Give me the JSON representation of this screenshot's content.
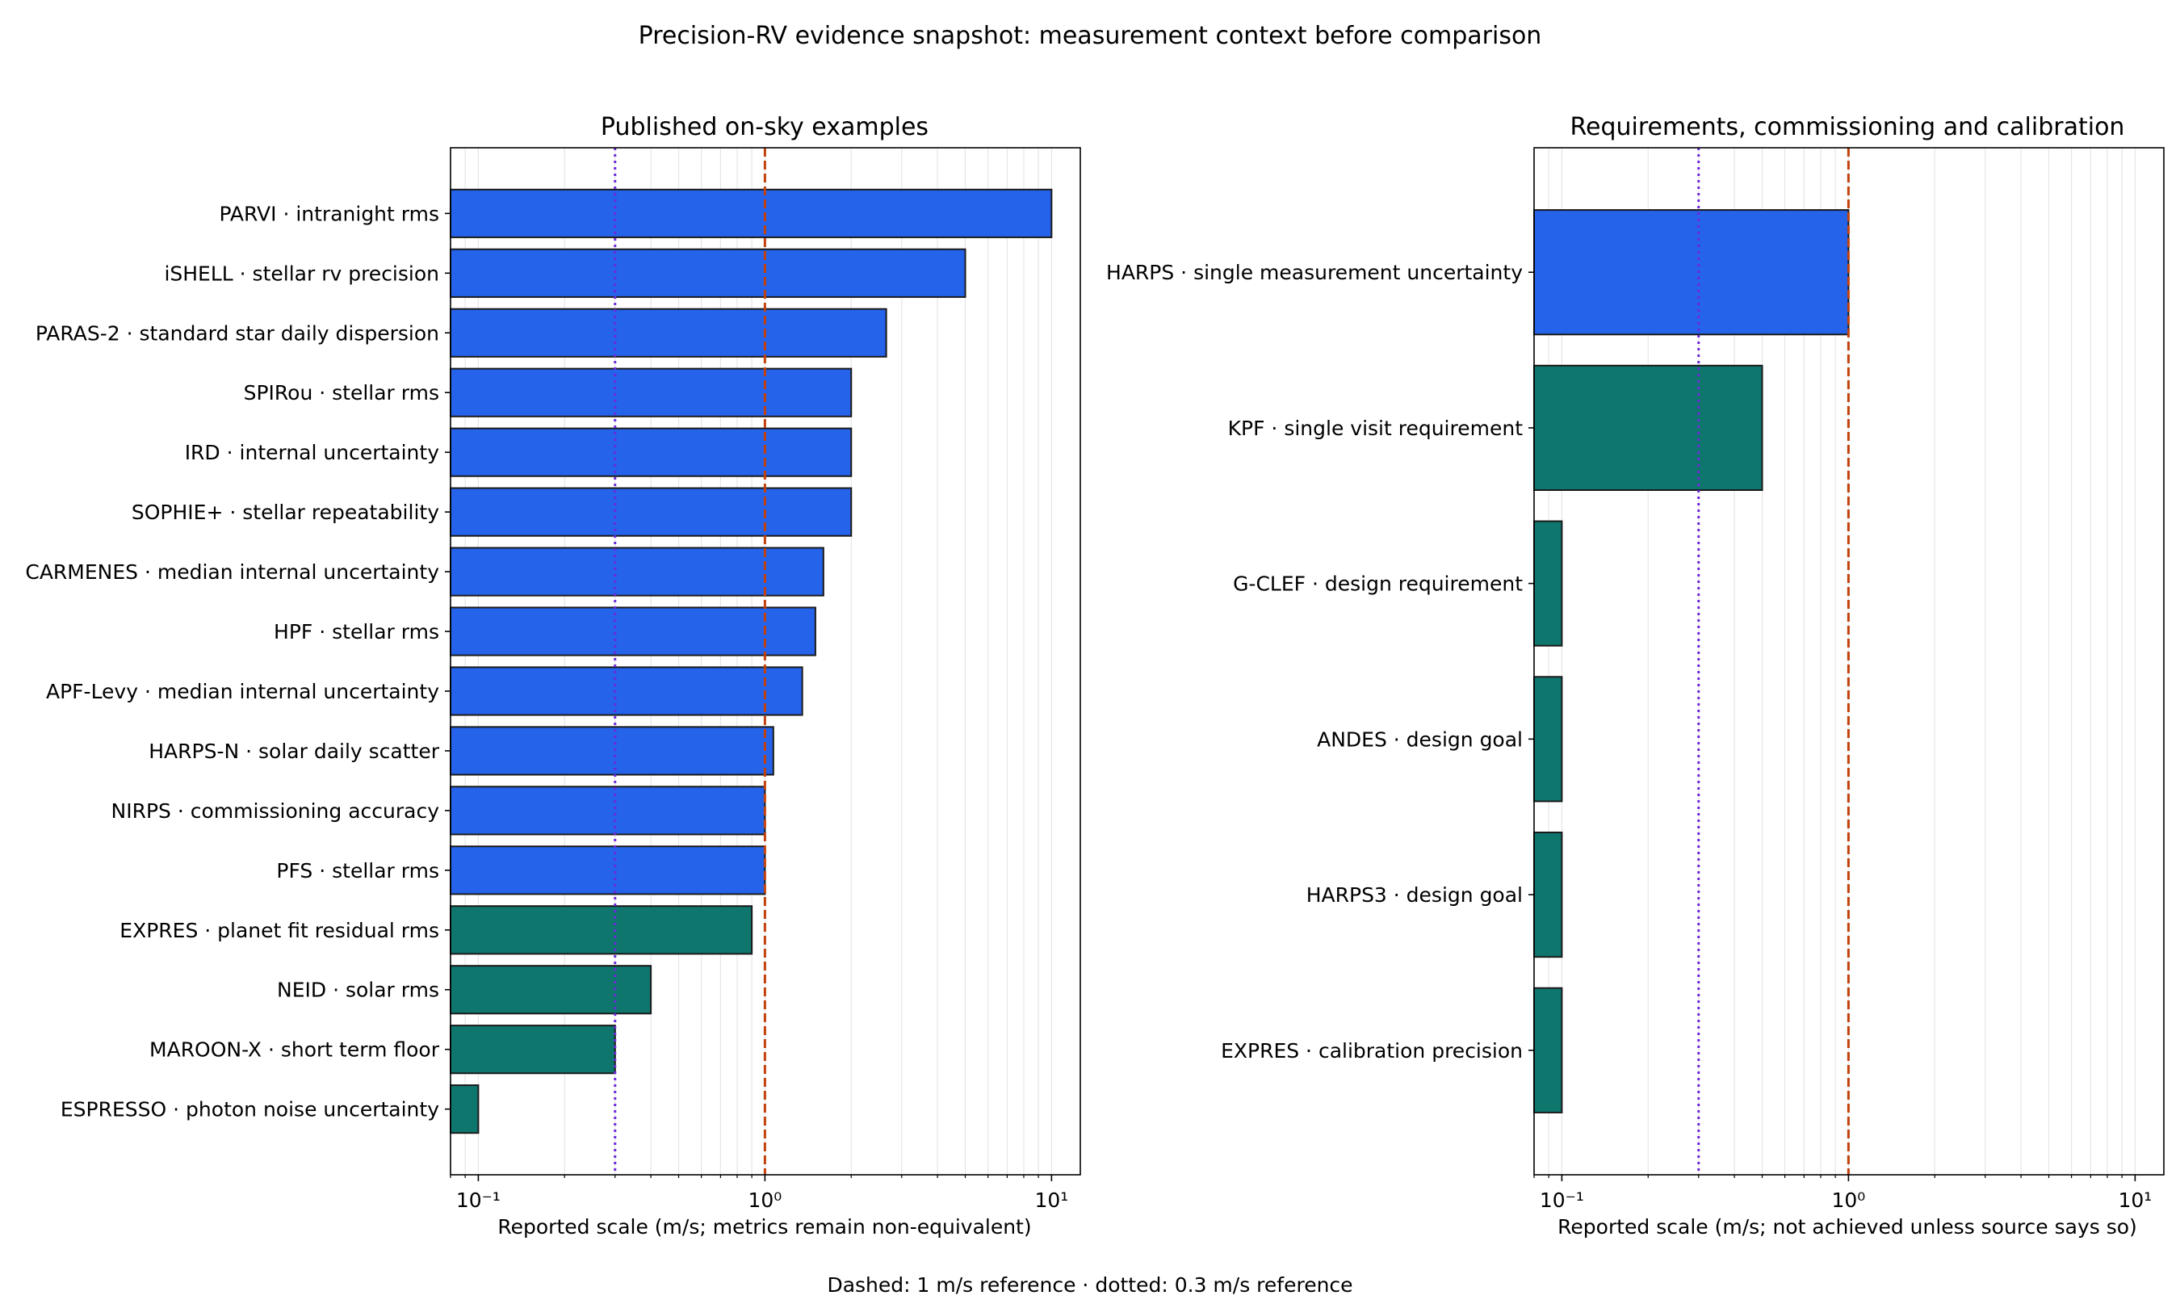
{
  "figure": {
    "title": "Precision-RV evidence snapshot: measurement context before comparison",
    "footer": "Dashed: 1 m/s reference · dotted: 0.3 m/s reference"
  },
  "colors": {
    "blue": "#2563eb",
    "teal": "#0f766e",
    "dashed_ref": "#c2410c",
    "dotted_ref": "#6d28d9"
  },
  "chart_data": [
    {
      "type": "bar",
      "orientation": "horizontal",
      "title": "Published on-sky examples",
      "xlabel": "Reported scale (m/s; metrics remain non-equivalent)",
      "xscale": "log",
      "xlim": [
        0.08,
        12.6
      ],
      "xticks": [
        0.1,
        1,
        10
      ],
      "xtick_labels": [
        "10⁻¹",
        "10⁰",
        "10¹"
      ],
      "grid": "x-minor",
      "reference_lines": [
        {
          "value": 1,
          "style": "dashed"
        },
        {
          "value": 0.3,
          "style": "dotted"
        }
      ],
      "categories": [
        "PARVI · intranight rms",
        "iSHELL · stellar rv precision",
        "PARAS-2 · standard star daily dispersion",
        "SPIRou · stellar rms",
        "IRD · internal uncertainty",
        "SOPHIE+ · stellar repeatability",
        "CARMENES · median internal uncertainty",
        "HPF · stellar rms",
        "APF-Levy · median internal uncertainty",
        "HARPS-N · solar daily scatter",
        "NIRPS · commissioning accuracy",
        "PFS · stellar rms",
        "EXPRES · planet fit residual rms",
        "NEID · solar rms",
        "MAROON-X · short term floor",
        "ESPRESSO · photon noise uncertainty"
      ],
      "values": [
        10,
        5,
        2.65,
        2,
        2,
        2,
        1.6,
        1.5,
        1.35,
        1.07,
        1.0,
        1.0,
        0.9,
        0.4,
        0.3,
        0.1
      ],
      "bar_colors": [
        "blue",
        "blue",
        "blue",
        "blue",
        "blue",
        "blue",
        "blue",
        "blue",
        "blue",
        "blue",
        "blue",
        "blue",
        "teal",
        "teal",
        "teal",
        "teal"
      ]
    },
    {
      "type": "bar",
      "orientation": "horizontal",
      "title": "Requirements, commissioning and calibration",
      "xlabel": "Reported scale (m/s; not achieved unless source says so)",
      "xscale": "log",
      "xlim": [
        0.08,
        12.6
      ],
      "xticks": [
        0.1,
        1,
        10
      ],
      "xtick_labels": [
        "10⁻¹",
        "10⁰",
        "10¹"
      ],
      "grid": "x-minor",
      "reference_lines": [
        {
          "value": 1,
          "style": "dashed"
        },
        {
          "value": 0.3,
          "style": "dotted"
        }
      ],
      "categories": [
        "HARPS · single measurement uncertainty",
        "KPF · single visit requirement",
        "G-CLEF · design requirement",
        "ANDES · design goal",
        "HARPS3 · design goal",
        "EXPRES · calibration precision"
      ],
      "values": [
        1.0,
        0.5,
        0.1,
        0.1,
        0.1,
        0.1
      ],
      "bar_colors": [
        "blue",
        "teal",
        "teal",
        "teal",
        "teal",
        "teal"
      ]
    }
  ]
}
